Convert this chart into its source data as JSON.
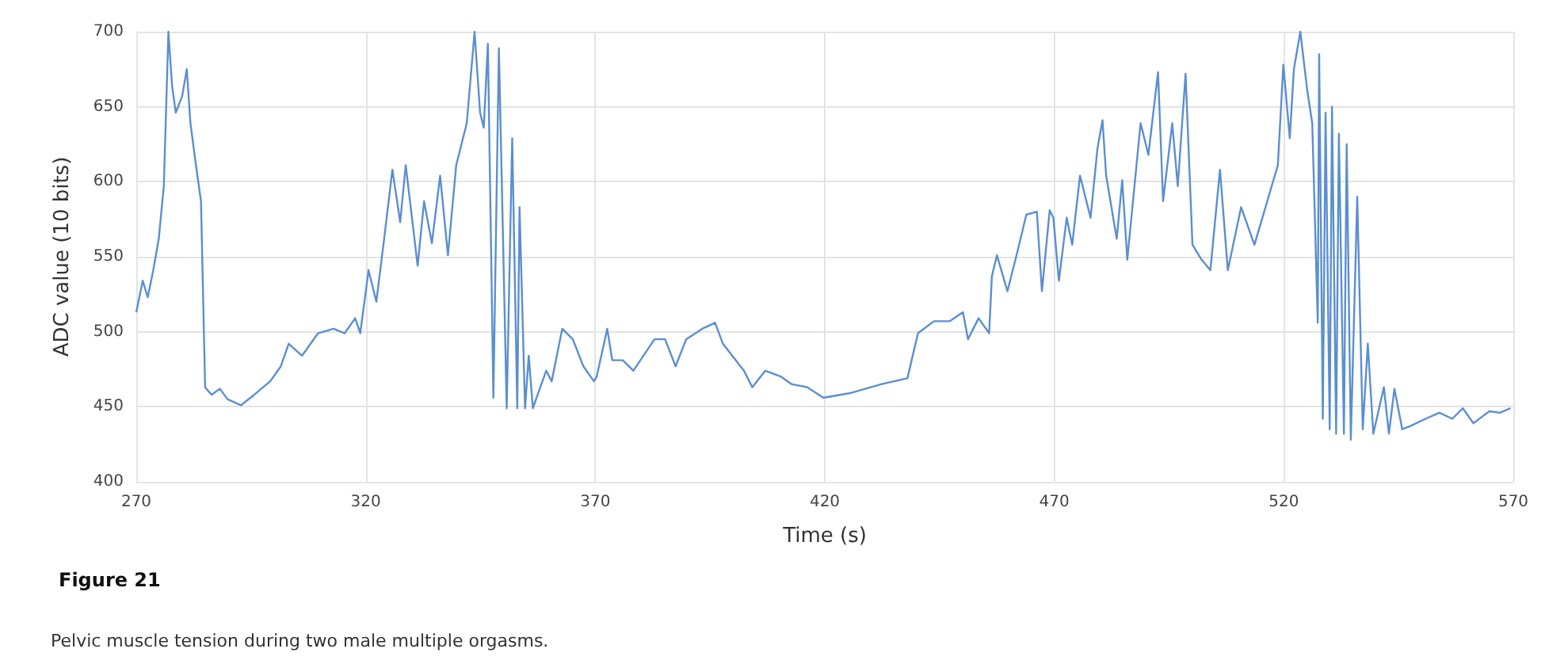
{
  "chart_data": {
    "type": "line",
    "title": "Figure 21",
    "annotations": [
      "Pelvic muscle tension during two male multiple orgasms."
    ],
    "xlabel": "Time (s)",
    "ylabel": "ADC value (10 bits)",
    "xlim": [
      270,
      570
    ],
    "xticks": [
      270,
      320,
      370,
      420,
      470,
      520,
      570
    ],
    "ylim": [
      400,
      700
    ],
    "yticks": [
      400,
      450,
      500,
      550,
      600,
      650,
      700
    ],
    "grid": true,
    "x": [
      270,
      271.4,
      272.5,
      273.7,
      274.9,
      276,
      277,
      277.8,
      278.6,
      280,
      281,
      281.8,
      283,
      284.1,
      285,
      286.4,
      288.2,
      289.9,
      292.8,
      295.7,
      299.2,
      301.5,
      303.2,
      306.1,
      309.6,
      313,
      315.4,
      317.7,
      318.8,
      320.6,
      322.3,
      324,
      325.8,
      327.5,
      328.7,
      331.3,
      332.7,
      334.4,
      336.2,
      337.9,
      339.7,
      342,
      343.7,
      344.9,
      345.7,
      346.6,
      347.8,
      349,
      350.7,
      351.9,
      353,
      353.5,
      354.7,
      355.5,
      356.4,
      359.3,
      360.5,
      362.8,
      365.1,
      367.4,
      369.7,
      370.3,
      372.6,
      373.7,
      376,
      378.3,
      382.9,
      385.2,
      387.5,
      389.8,
      393.3,
      396.1,
      397.8,
      402.4,
      404.2,
      407,
      410.5,
      412.8,
      416.2,
      419.7,
      425.4,
      432.3,
      438,
      440.3,
      443.8,
      447.2,
      450.1,
      451.2,
      453.5,
      455.8,
      456.4,
      457.5,
      459.8,
      462.1,
      463.9,
      466.2,
      467.3,
      469,
      469.8,
      471,
      472.7,
      473.9,
      475.6,
      477.9,
      479.4,
      480.5,
      481.3,
      483.6,
      484.8,
      485.9,
      488.8,
      490.5,
      492.6,
      493.7,
      495.7,
      496.9,
      498.6,
      500.1,
      502.1,
      504,
      506.1,
      507.8,
      510.7,
      513.6,
      516.4,
      518.7,
      519.9,
      521.3,
      522.2,
      523.6,
      525.1,
      526.2,
      527.4,
      527.7,
      528.5,
      529.1,
      530,
      530.5,
      531.4,
      532,
      533.1,
      533.7,
      534.6,
      536,
      537.2,
      538.3,
      539.5,
      541.8,
      542.9,
      544.1,
      545.8,
      547.5,
      550.9,
      553.9,
      556.7,
      559,
      561.3,
      564.8,
      567.1,
      569.4
    ],
    "series": [
      {
        "color": "#5b8fd0",
        "values": [
          513,
          534,
          523,
          541,
          562,
          597,
          700,
          664,
          646,
          657,
          675,
          639,
          611,
          587,
          463,
          458,
          462,
          455,
          451,
          458,
          467,
          477,
          492,
          484,
          499,
          502,
          499,
          509,
          499,
          541,
          520,
          562,
          608,
          573,
          611,
          544,
          587,
          559,
          604,
          551,
          611,
          639,
          700,
          646,
          636,
          692,
          456,
          689,
          449,
          629,
          449,
          583,
          449,
          484,
          449,
          474,
          467,
          502,
          495,
          477,
          467,
          470,
          502,
          481,
          481,
          474,
          495,
          495,
          477,
          495,
          502,
          506,
          492,
          474,
          463,
          474,
          470,
          465,
          463,
          456,
          459,
          465,
          469,
          499,
          507,
          507,
          513,
          495,
          509,
          499,
          537,
          551,
          527,
          555,
          578,
          580,
          527,
          581,
          576,
          534,
          576,
          558,
          604,
          576,
          622,
          641,
          604,
          562,
          601,
          548,
          639,
          618,
          673,
          587,
          639,
          597,
          672,
          558,
          548,
          541,
          608,
          541,
          583,
          558,
          587,
          611,
          678,
          629,
          675,
          700,
          661,
          639,
          506,
          685,
          442,
          646,
          435,
          650,
          432,
          632,
          432,
          625,
          428,
          590,
          435,
          492,
          432,
          463,
          432,
          462,
          435,
          437,
          442,
          446,
          442,
          449,
          439,
          447,
          446,
          449
        ]
      }
    ]
  }
}
